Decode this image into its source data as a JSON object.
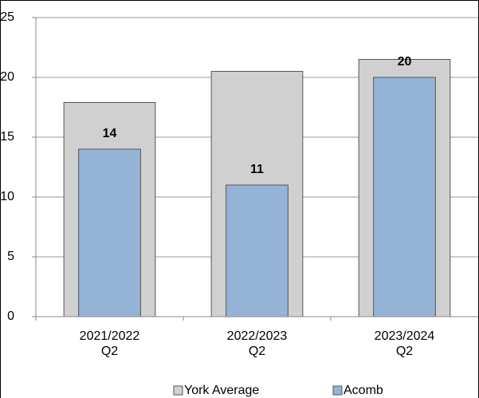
{
  "chart_data": {
    "type": "bar",
    "categories": [
      "2021/2022\nQ2",
      "2022/2023\nQ2",
      "2023/2024\nQ2"
    ],
    "series": [
      {
        "name": "York Average",
        "color": "#d0d0d0",
        "values": [
          17.9,
          20.5,
          21.5
        ]
      },
      {
        "name": "Acomb",
        "color": "#95b3d7",
        "values": [
          14,
          11,
          20
        ]
      }
    ],
    "ylim": [
      0,
      25
    ],
    "yticks": [
      0,
      5,
      10,
      15,
      20,
      25
    ],
    "grid": true,
    "legend": "bottom"
  }
}
